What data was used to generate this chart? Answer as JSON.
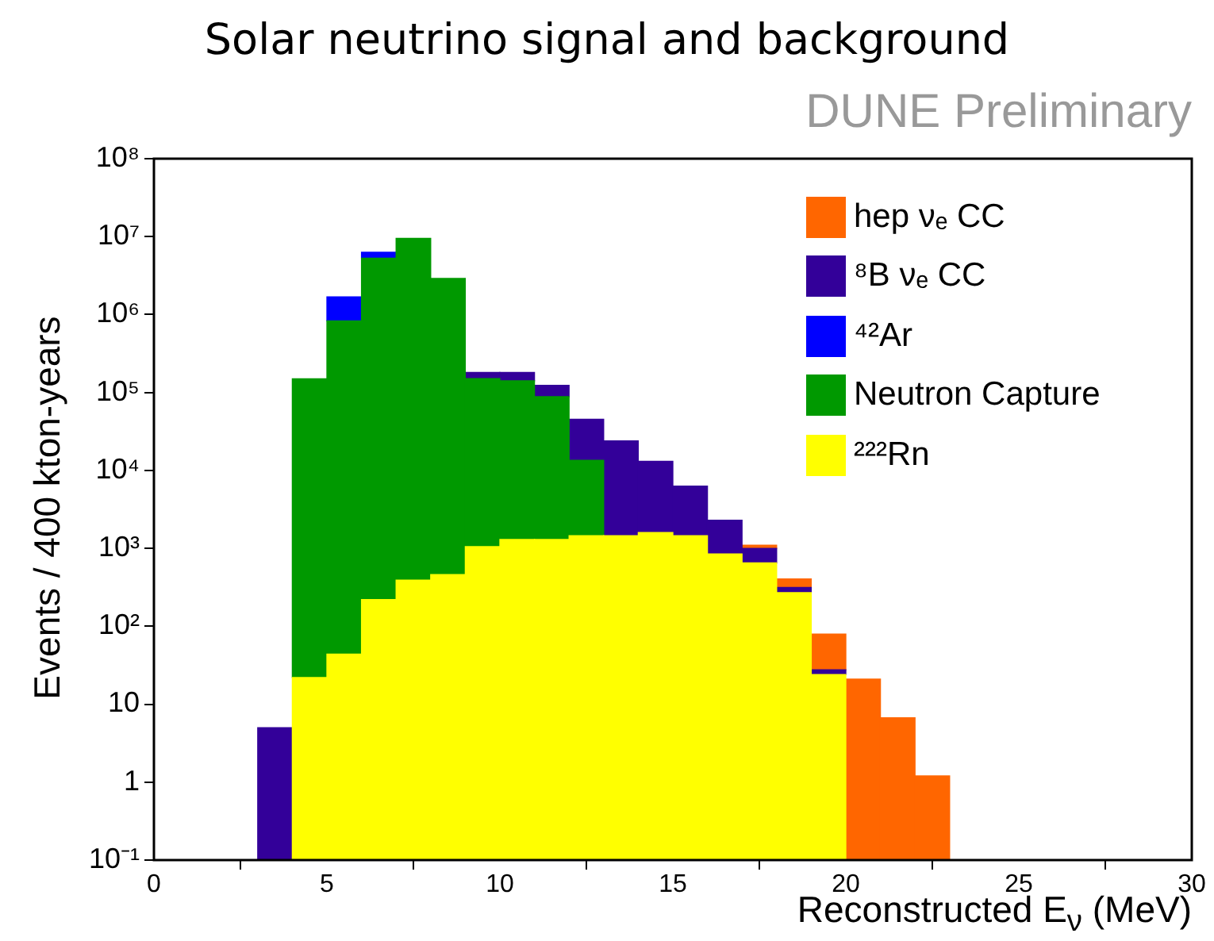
{
  "chart_data": {
    "type": "bar",
    "title": "Solar  neutrino signal and background",
    "subtitle": "DUNE Preliminary",
    "xlabel": "Reconstructed E$_{ν}$ (MeV)",
    "ylabel": "Events / 400 kton-years",
    "x": [
      3.5,
      4.5,
      5.5,
      6.5,
      7.5,
      8.5,
      9.5,
      10.5,
      11.5,
      12.5,
      13.5,
      14.5,
      15.5,
      16.5,
      17.5,
      18.5,
      19.5,
      20.5,
      21.5,
      22.5
    ],
    "stacked": true,
    "log": "y",
    "series": [
      {
        "name": "²²²Rn",
        "color": "#ffff00",
        "values": [
          null,
          22,
          44,
          220,
          390,
          460,
          1050,
          1300,
          1300,
          1450,
          1450,
          1600,
          1450,
          850,
          650,
          270,
          24,
          null,
          null,
          null
        ]
      },
      {
        "name": "Neutron Capture",
        "color": "#009900",
        "values": [
          null,
          150000,
          830000,
          5300000,
          9500000,
          2900000,
          150000,
          140000,
          87000,
          12000,
          null,
          null,
          null,
          null,
          null,
          null,
          null,
          null,
          null,
          null
        ]
      },
      {
        "name": "⁴²Ar",
        "color": "#0000ff",
        "values": [
          null,
          null,
          860000,
          1000000,
          null,
          null,
          null,
          null,
          null,
          null,
          null,
          null,
          null,
          null,
          null,
          null,
          null,
          null,
          null,
          null
        ]
      },
      {
        "name": "⁸B νₑ CC",
        "color": "#330099",
        "values": [
          5,
          null,
          null,
          null,
          null,
          null,
          30000,
          40000,
          35000,
          32000,
          22500,
          11500,
          4850,
          1450,
          350,
          45,
          3.6,
          null,
          null,
          null
        ]
      },
      {
        "name": "hep  νₑ CC",
        "color": "#ff6600",
        "values": [
          null,
          null,
          null,
          null,
          null,
          null,
          null,
          null,
          null,
          null,
          null,
          null,
          null,
          null,
          100,
          90,
          52,
          21,
          6.7,
          1.2
        ]
      }
    ],
    "xlim": [
      0,
      30
    ],
    "xticks": [
      0,
      5,
      10,
      15,
      20,
      25,
      30
    ],
    "ylim": [
      0.1,
      100000000
    ],
    "yticks": [
      {
        "value": 0.1,
        "label": "10⁻¹"
      },
      1,
      10,
      {
        "value": 100,
        "label": "10²"
      },
      {
        "value": 1000,
        "label": "10³"
      },
      {
        "value": 10000,
        "label": "10⁴"
      },
      {
        "value": 100000,
        "label": "10⁵"
      },
      {
        "value": 1000000,
        "label": "10⁶"
      },
      {
        "value": 10000000,
        "label": "10⁷"
      },
      {
        "value": 100000000,
        "label": "10⁸"
      }
    ],
    "grid": false,
    "legend": "top right"
  }
}
